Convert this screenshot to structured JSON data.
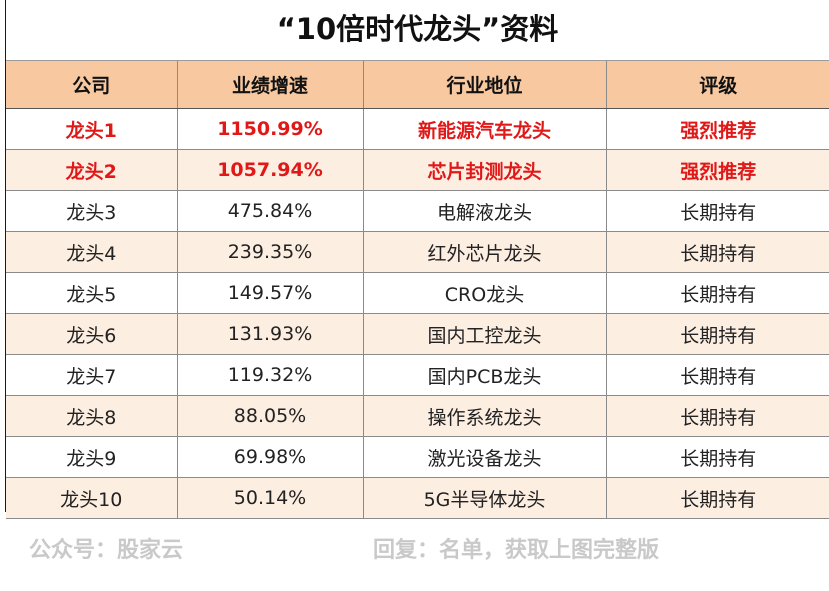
{
  "title": "“10倍时代龙头”资料",
  "table": {
    "headers": [
      "公司",
      "业绩增速",
      "行业地位",
      "评级"
    ],
    "rows": [
      {
        "company": "龙头1",
        "growth": "1150.99%",
        "position": "新能源汽车龙头",
        "rating": "强烈推荐",
        "highlight": true
      },
      {
        "company": "龙头2",
        "growth": "1057.94%",
        "position": "芯片封测龙头",
        "rating": "强烈推荐",
        "highlight": true
      },
      {
        "company": "龙头3",
        "growth": "475.84%",
        "position": "电解液龙头",
        "rating": "长期持有",
        "highlight": false
      },
      {
        "company": "龙头4",
        "growth": "239.35%",
        "position": "红外芯片龙头",
        "rating": "长期持有",
        "highlight": false
      },
      {
        "company": "龙头5",
        "growth": "149.57%",
        "position": "CRO龙头",
        "rating": "长期持有",
        "highlight": false
      },
      {
        "company": "龙头6",
        "growth": "131.93%",
        "position": "国内工控龙头",
        "rating": "长期持有",
        "highlight": false
      },
      {
        "company": "龙头7",
        "growth": "119.32%",
        "position": "国内PCB龙头",
        "rating": "长期持有",
        "highlight": false
      },
      {
        "company": "龙头8",
        "growth": "88.05%",
        "position": "操作系统龙头",
        "rating": "长期持有",
        "highlight": false
      },
      {
        "company": "龙头9",
        "growth": "69.98%",
        "position": "激光设备龙头",
        "rating": "长期持有",
        "highlight": false
      },
      {
        "company": "龙头10",
        "growth": "50.14%",
        "position": "5G半导体龙头",
        "rating": "长期持有",
        "highlight": false
      }
    ]
  },
  "footer": {
    "left": "公众号：股家云",
    "right": "回复：名单，获取上图完整版"
  },
  "colors": {
    "header_bg": "#f8c9a0",
    "alt_row_bg": "#fdeee2",
    "highlight_text": "#e01818",
    "watermark_text": "#c9c9c9"
  }
}
